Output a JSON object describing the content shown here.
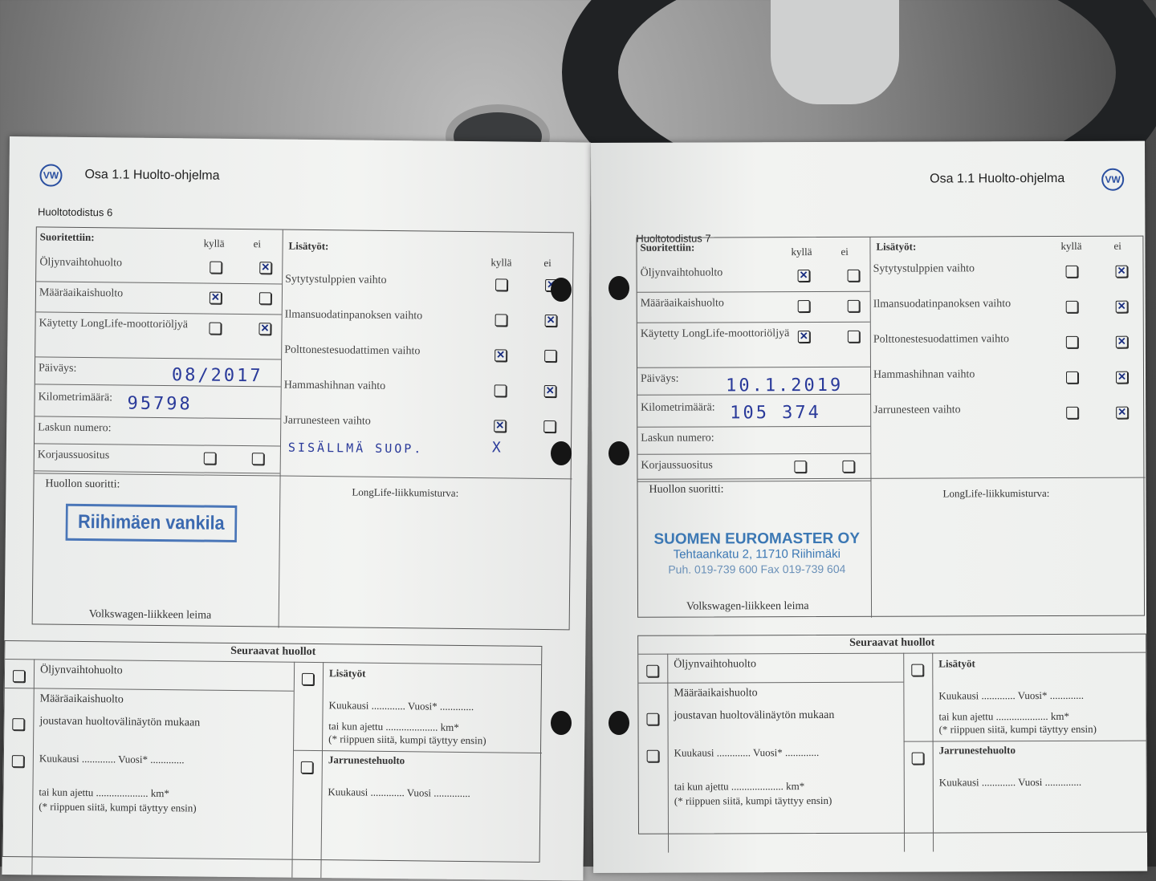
{
  "section_title": "Osa 1.1 Huolto-ohjelma",
  "logo": "VW",
  "col_yes": "kyllä",
  "col_no": "ei",
  "labels": {
    "performed": "Suoritettiin:",
    "extra": "Lisätyöt:",
    "date": "Päiväys:",
    "km": "Kilometrimäärä:",
    "invoice": "Laskun numero:",
    "repair": "Korjaussuositus",
    "done_by": "Huollon suoritti:",
    "longlife": "LongLife-liikkumisturva:",
    "dealer_stamp": "Volkswagen-liikkeen leima"
  },
  "pages": [
    {
      "certificate": "Huoltotodistus 6",
      "performed": [
        {
          "label": "Öljynvaihtohuolto",
          "checked": "ei"
        },
        {
          "label": "Määräaikaishuolto",
          "checked": "kyllä"
        },
        {
          "label": "Käytetty LongLife-moottoriöljyä",
          "checked": "ei"
        }
      ],
      "extra": [
        {
          "label": "Sytytystulppien vaihto",
          "checked": "ei"
        },
        {
          "label": "Ilmansuodatinpanoksen vaihto",
          "checked": "ei"
        },
        {
          "label": "Polttonestesuodattimen vaihto",
          "checked": "kyllä"
        },
        {
          "label": "Hammashihnan vaihto",
          "checked": "ei"
        },
        {
          "label": "Jarrunesteen vaihto",
          "checked": "kyllä"
        }
      ],
      "handwritten_note": "SISÄLLMÄ SUOP.",
      "note_mark": "X",
      "date": "08/2017",
      "km": "95798",
      "stamp": {
        "line1": "Riihimäen vankila"
      }
    },
    {
      "certificate": "Huoltotodistus 7",
      "performed": [
        {
          "label": "Öljynvaihtohuolto",
          "checked": "kyllä"
        },
        {
          "label": "Määräaikaishuolto",
          "checked": null
        },
        {
          "label": "Käytetty LongLife-moottoriöljyä",
          "checked": "kyllä"
        }
      ],
      "extra": [
        {
          "label": "Sytytystulppien vaihto",
          "checked": "ei"
        },
        {
          "label": "Ilmansuodatinpanoksen vaihto",
          "checked": "ei"
        },
        {
          "label": "Polttonestesuodattimen vaihto",
          "checked": "ei"
        },
        {
          "label": "Hammashihnan vaihto",
          "checked": "ei"
        },
        {
          "label": "Jarrunesteen vaihto",
          "checked": "ei"
        }
      ],
      "date": "10.1.2019",
      "km": "105 374",
      "stamp": {
        "line1": "SUOMEN EUROMASTER OY",
        "line2": "Tehtaankatu 2, 11710 Riihimäki",
        "line3": "Puh. 019-739 600 Fax 019-739 604"
      }
    }
  ],
  "next": {
    "title": "Seuraavat huollot",
    "oil": "Öljynvaihtohuolto",
    "periodic": "Määräaikaishuolto",
    "flexible": "joustavan huoltovälinäytön mukaan",
    "month_year": "Kuukausi ............. Vuosi* .............",
    "km_line": "tai kun ajettu .................... km*",
    "footnote": "(* riippuen siitä, kumpi täyttyy ensin)",
    "extra": "Lisätyöt",
    "brake": "Jarrunestehuolto",
    "brake_month": "Kuukausi ............. Vuosi .............."
  }
}
